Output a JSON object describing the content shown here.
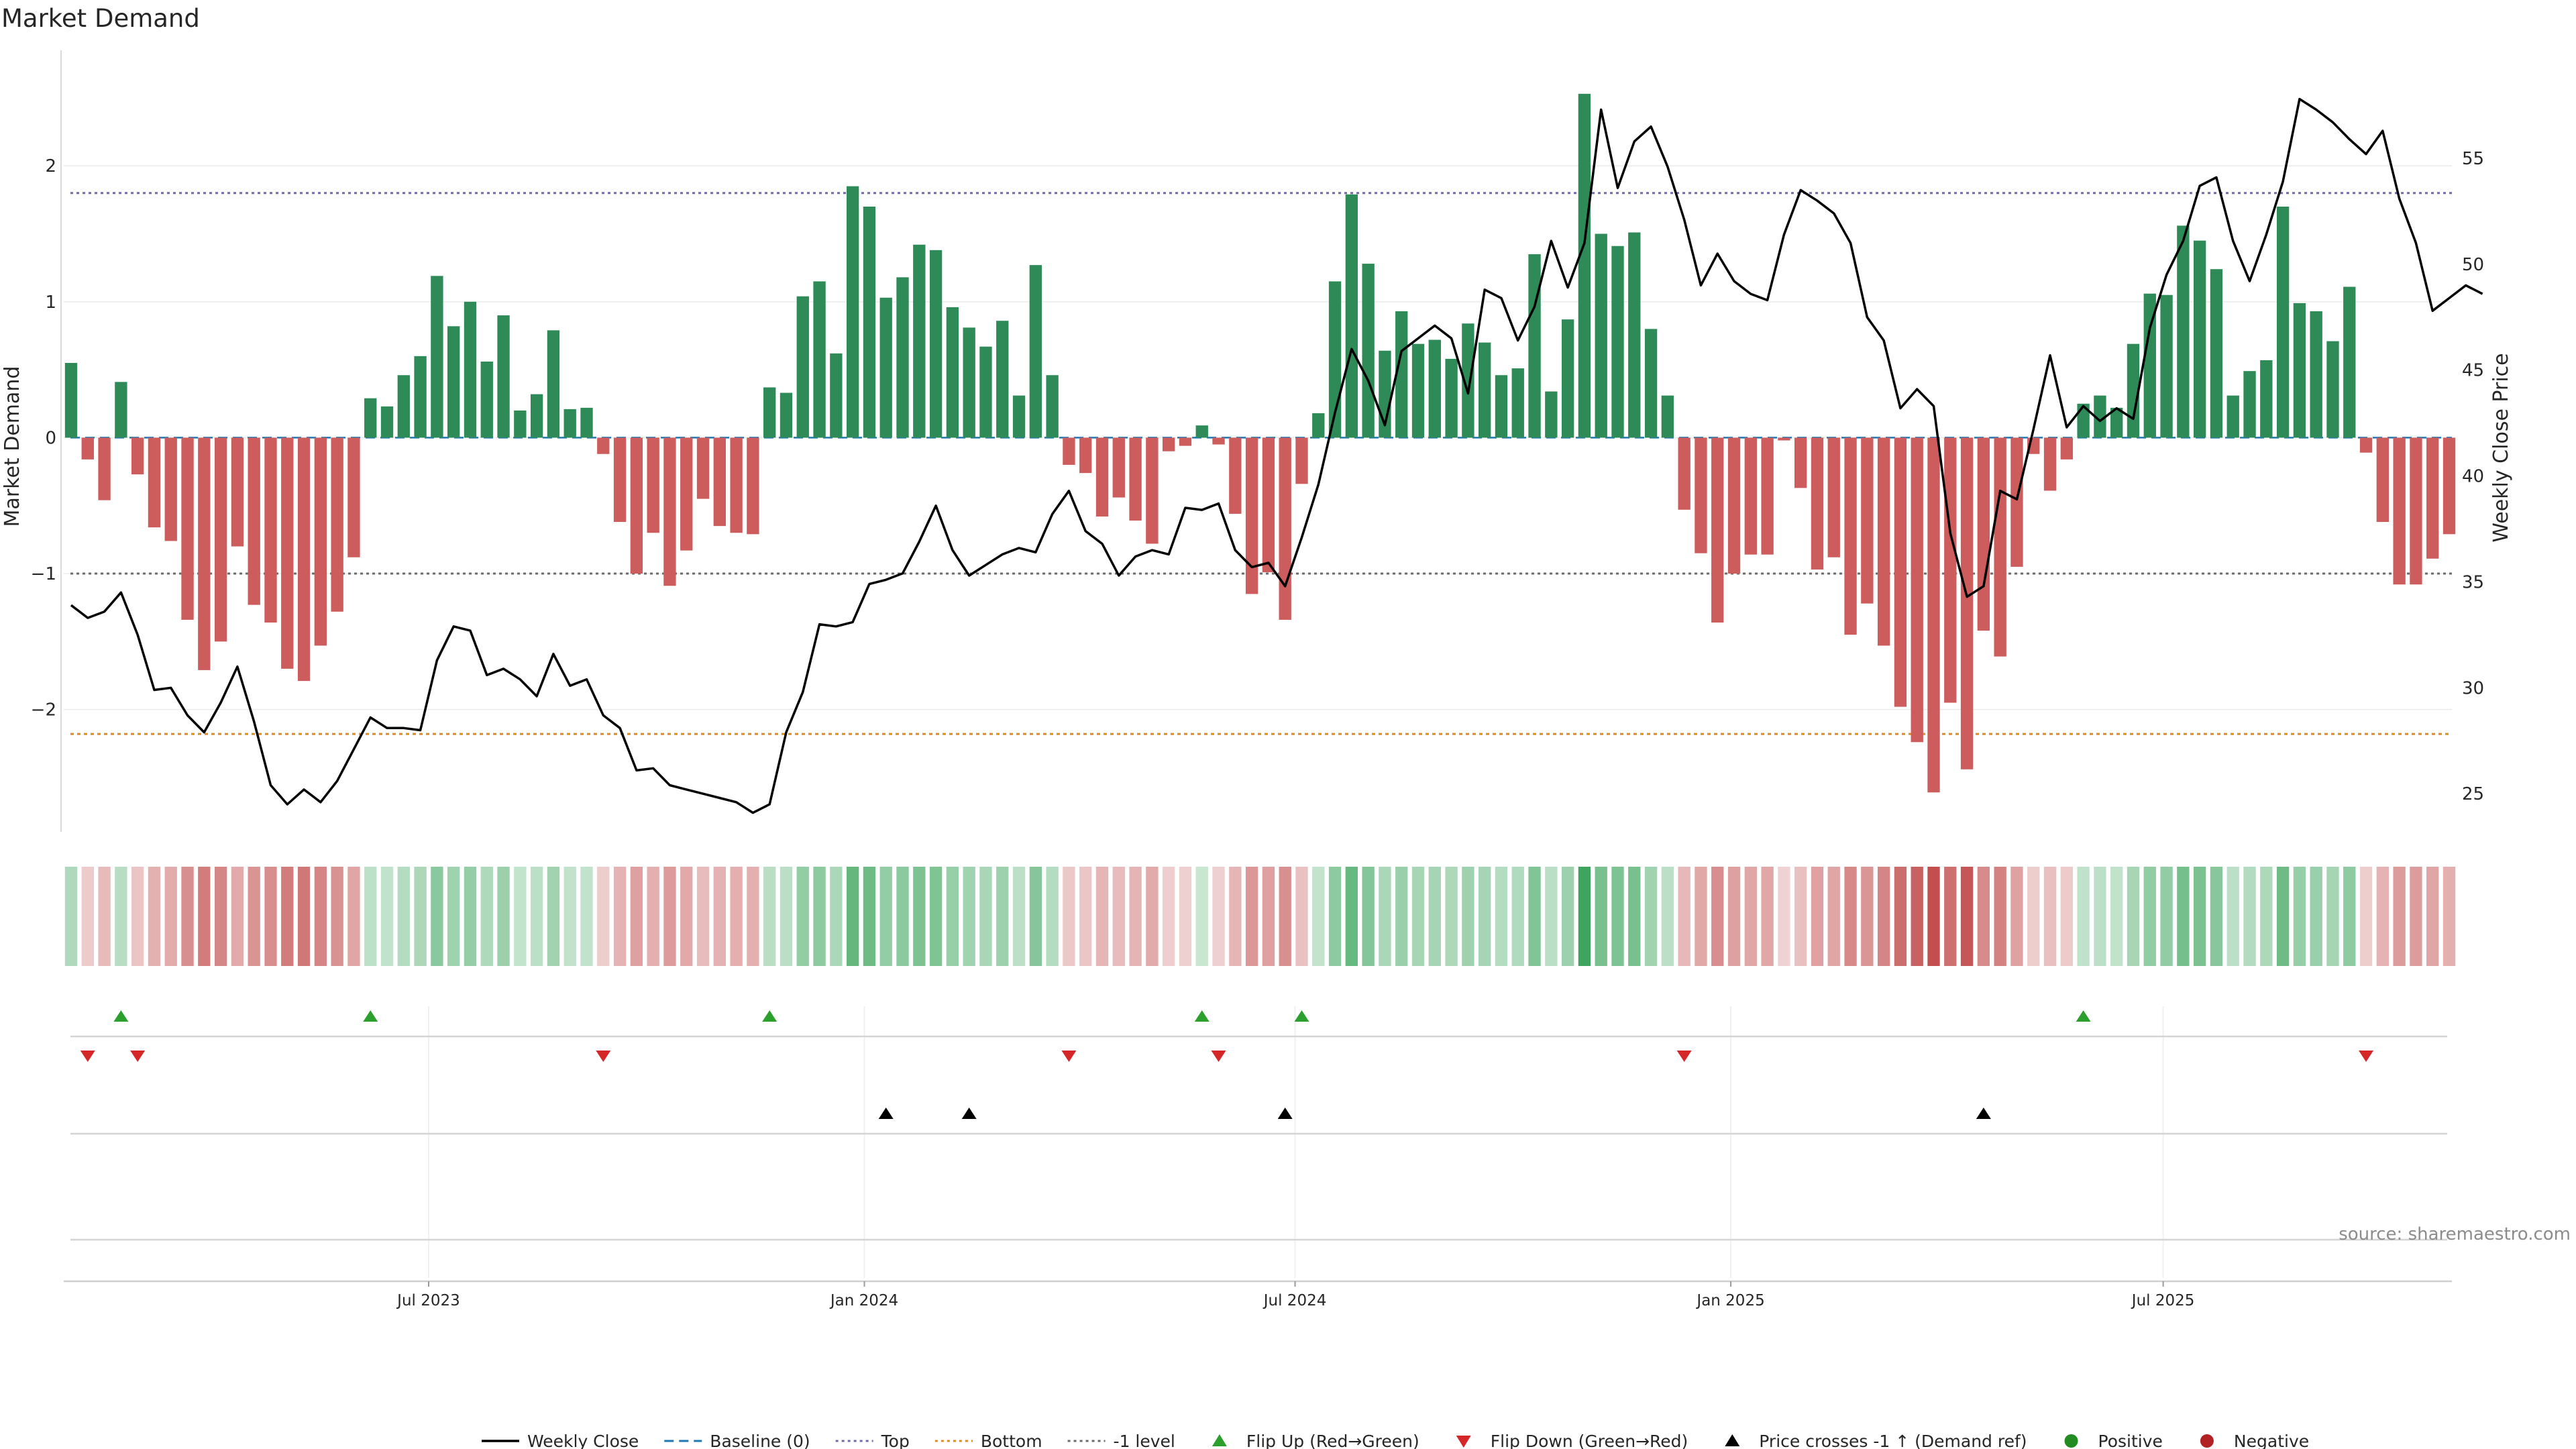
{
  "title": "Market Demand",
  "source": "source: sharemaestro.com",
  "colors": {
    "positive": "#2e8b57",
    "negative": "#cd5c5c",
    "price": "#000000",
    "baseline": "#1f77b4",
    "top": "#6f6aa8",
    "bottom": "#e08a1e",
    "minus_one": "#6a6a6a",
    "flip_up": "#2ca02c",
    "flip_down": "#d62728",
    "cross": "#000000",
    "positive_dot": "#228b22",
    "negative_dot": "#b22222"
  },
  "chart_data": {
    "type": "bar",
    "title": "Market Demand",
    "ylabel": "Market Demand",
    "y2label": "Weekly Close Price",
    "ylim": [
      -2.9,
      2.85
    ],
    "y2lim": [
      23.2,
      60.1
    ],
    "yticks": [
      -2,
      -1,
      0,
      1,
      2
    ],
    "yticklabels": [
      "−2",
      "−1",
      "0",
      "1",
      "2"
    ],
    "y2ticks": [
      25,
      30,
      35,
      40,
      45,
      50,
      55
    ],
    "y2ticklabels": [
      "25",
      "30",
      "35",
      "40",
      "45",
      "50",
      "55"
    ],
    "levels": {
      "top": 1.8,
      "bottom": -2.18,
      "minus_one": -1.0,
      "baseline": 0
    },
    "xticks": [
      {
        "index": 21.5,
        "label": "Jul 2023"
      },
      {
        "index": 47.7,
        "label": "Jan 2024"
      },
      {
        "index": 73.6,
        "label": "Jul 2024"
      },
      {
        "index": 99.8,
        "label": "Jan 2025"
      },
      {
        "index": 125.8,
        "label": "Jul 2025"
      }
    ],
    "demand": [
      0.55,
      -0.16,
      -0.46,
      0.41,
      -0.27,
      -0.66,
      -0.76,
      -1.34,
      -1.71,
      -1.5,
      -0.8,
      -1.23,
      -1.36,
      -1.7,
      -1.79,
      -1.53,
      -1.28,
      -0.88,
      0.29,
      0.23,
      0.46,
      0.6,
      1.19,
      0.82,
      1.0,
      0.56,
      0.9,
      0.2,
      0.32,
      0.79,
      0.21,
      0.22,
      -0.12,
      -0.62,
      -1.0,
      -0.7,
      -1.09,
      -0.83,
      -0.45,
      -0.65,
      -0.7,
      -0.71,
      0.37,
      0.33,
      1.04,
      1.15,
      0.62,
      1.85,
      1.7,
      1.03,
      1.18,
      1.42,
      1.38,
      0.96,
      0.81,
      0.67,
      0.86,
      0.31,
      1.27,
      0.46,
      -0.2,
      -0.26,
      -0.58,
      -0.44,
      -0.61,
      -0.78,
      -0.1,
      -0.06,
      0.09,
      -0.05,
      -0.56,
      -1.15,
      -0.99,
      -1.34,
      -0.34,
      0.18,
      1.15,
      1.79,
      1.28,
      0.64,
      0.93,
      0.69,
      0.72,
      0.58,
      0.84,
      0.7,
      0.46,
      0.51,
      1.35,
      0.34,
      0.87,
      2.53,
      1.5,
      1.41,
      1.51,
      0.8,
      0.31,
      -0.53,
      -0.85,
      -1.36,
      -1.0,
      -0.86,
      -0.86,
      -0.02,
      -0.37,
      -0.97,
      -0.88,
      -1.45,
      -1.22,
      -1.53,
      -1.98,
      -2.24,
      -2.61,
      -1.95,
      -2.44,
      -1.42,
      -1.61,
      -0.95,
      -0.12,
      -0.39,
      -0.16,
      0.25,
      0.31,
      0.22,
      0.69,
      1.06,
      1.05,
      1.56,
      1.45,
      1.24,
      0.31,
      0.49,
      0.57,
      1.7,
      0.99,
      0.93,
      0.71,
      1.11,
      -0.11,
      -0.62,
      -1.08,
      -1.08,
      -0.89,
      -0.71
    ],
    "price": [
      33.9,
      33.3,
      33.6,
      34.5,
      32.5,
      29.9,
      30.0,
      28.7,
      27.9,
      29.3,
      31.0,
      28.4,
      25.4,
      24.5,
      25.2,
      24.6,
      25.6,
      27.1,
      28.6,
      28.1,
      28.1,
      28.0,
      31.3,
      32.9,
      32.7,
      30.6,
      30.9,
      30.4,
      29.6,
      31.6,
      30.1,
      30.4,
      28.7,
      28.1,
      26.1,
      26.2,
      25.4,
      25.2,
      25.0,
      24.8,
      24.6,
      24.1,
      24.5,
      27.9,
      29.8,
      33.0,
      32.9,
      33.1,
      34.9,
      35.1,
      35.4,
      36.9,
      38.6,
      36.5,
      35.3,
      35.8,
      36.3,
      36.6,
      36.4,
      38.2,
      39.3,
      37.4,
      36.8,
      35.3,
      36.2,
      36.5,
      36.3,
      38.5,
      38.4,
      38.7,
      36.5,
      35.7,
      35.9,
      34.8,
      37.1,
      39.6,
      43.0,
      46.0,
      44.5,
      42.4,
      45.9,
      46.5,
      47.1,
      46.5,
      43.9,
      48.8,
      48.4,
      46.4,
      48.0,
      51.1,
      48.9,
      51.0,
      57.3,
      53.6,
      55.8,
      56.5,
      54.6,
      52.1,
      49.0,
      50.5,
      49.2,
      48.6,
      48.3,
      51.4,
      53.5,
      53.0,
      52.4,
      51.0,
      47.5,
      46.4,
      43.2,
      44.1,
      43.3,
      37.3,
      34.3,
      34.8,
      39.3,
      38.9,
      42.2,
      45.7,
      42.3,
      43.3,
      42.6,
      43.2,
      42.7,
      47.0,
      49.5,
      51.1,
      53.7,
      54.1,
      51.1,
      49.2,
      51.4,
      53.9,
      57.8,
      57.3,
      56.7,
      55.9,
      55.2,
      56.3,
      53.1,
      51.0,
      47.8,
      48.4,
      49.0,
      48.6
    ],
    "flip_up": [
      3,
      18,
      42,
      68,
      74,
      121
    ],
    "flip_down": [
      1,
      4,
      32,
      60,
      69,
      97,
      138
    ],
    "price_cross": [
      49,
      54,
      73,
      115
    ]
  },
  "legend": [
    {
      "kind": "line-solid",
      "color": "#000000",
      "label": "Weekly Close"
    },
    {
      "kind": "line-dashed",
      "color": "#1f77b4",
      "label": "Baseline (0)"
    },
    {
      "kind": "line-dotted",
      "color": "#6f6aa8",
      "label": "Top"
    },
    {
      "kind": "line-dotted",
      "color": "#e08a1e",
      "label": "Bottom"
    },
    {
      "kind": "line-dotted",
      "color": "#6a6a6a",
      "label": "-1 level"
    },
    {
      "kind": "tri-up",
      "color": "#2ca02c",
      "label": "Flip Up (Red→Green)"
    },
    {
      "kind": "tri-down",
      "color": "#d62728",
      "label": "Flip Down (Green→Red)"
    },
    {
      "kind": "tri-up",
      "color": "#000000",
      "label": "Price crosses -1 ↑ (Demand ref)"
    },
    {
      "kind": "dot",
      "color": "#228b22",
      "label": "Positive"
    },
    {
      "kind": "dot",
      "color": "#b22222",
      "label": "Negative"
    }
  ]
}
